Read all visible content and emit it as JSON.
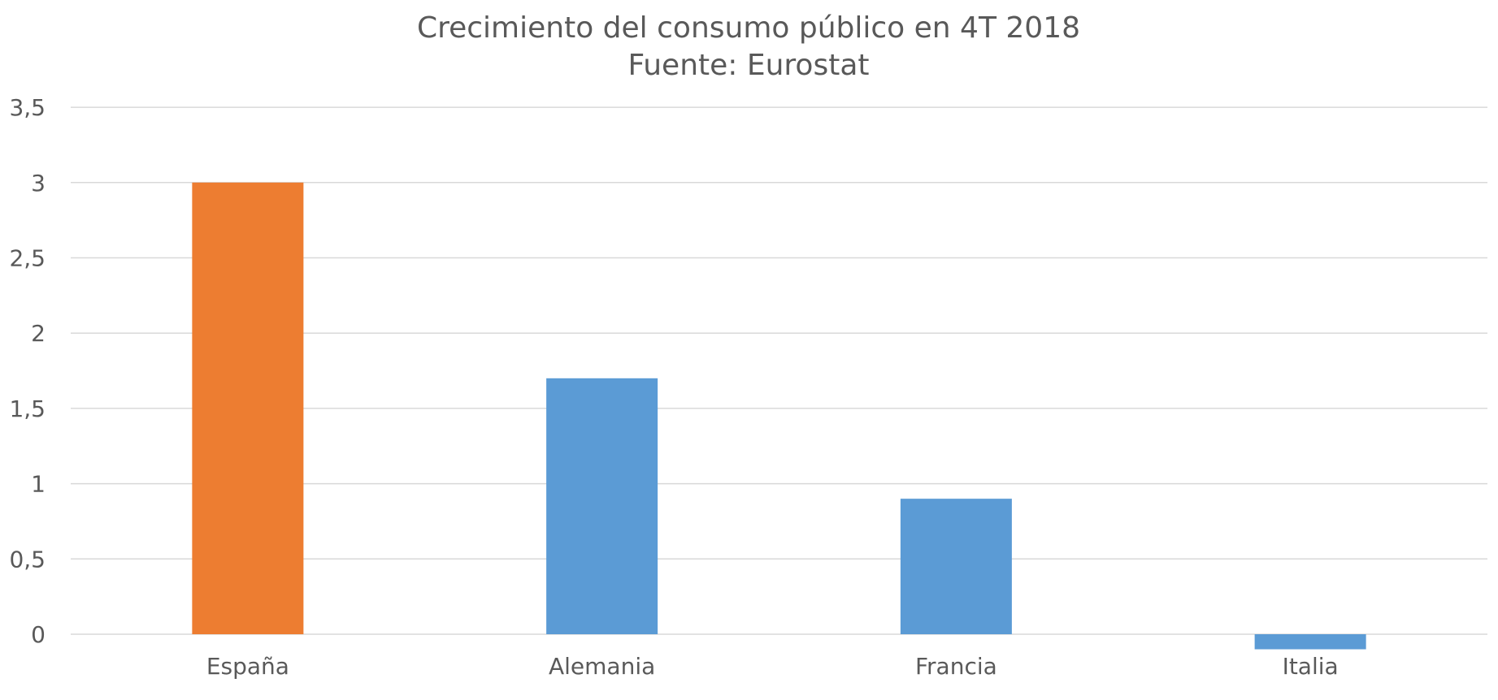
{
  "chart_data": {
    "type": "bar",
    "title": "Crecimiento del consumo público en 4T 2018",
    "subtitle": "Fuente: Eurostat",
    "categories": [
      "España",
      "Alemania",
      "Francia",
      "Italia"
    ],
    "values": [
      3.0,
      1.7,
      0.9,
      -0.1
    ],
    "bar_colors": [
      "#ED7D31",
      "#5B9BD5",
      "#5B9BD5",
      "#5B9BD5"
    ],
    "ylim": [
      -0.1,
      3.5
    ],
    "yticks": [
      0,
      0.5,
      1,
      1.5,
      2,
      2.5,
      3,
      3.5
    ],
    "ytick_labels": [
      "0",
      "0,5",
      "1",
      "1,5",
      "2",
      "2,5",
      "3",
      "3,5"
    ],
    "grid": true,
    "legend": "none",
    "xlabel": "",
    "ylabel": ""
  }
}
